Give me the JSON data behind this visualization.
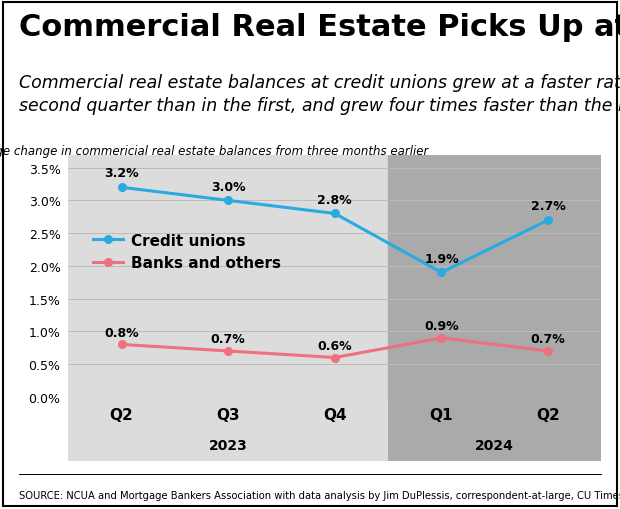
{
  "title": "Commercial Real Estate Picks Up at CUs",
  "subtitle": "Commercial real estate balances at credit unions grew at a faster rate in the\nsecond quarter than in the first, and grew four times faster than the nation.",
  "axis_label": "Percentage change in commericial real estate balances from three months earlier",
  "source": "SOURCE: NCUA and Mortgage Bankers Association with data analysis by Jim DuPlessis, correspondent-at-large, CU Times.",
  "x_labels": [
    "Q2",
    "Q3",
    "Q4",
    "Q1",
    "Q2"
  ],
  "x_positions": [
    0,
    1,
    2,
    3,
    4
  ],
  "year_2023_label": "2023",
  "year_2024_label": "2024",
  "cu_values": [
    3.2,
    3.0,
    2.8,
    1.9,
    2.7
  ],
  "bank_values": [
    0.8,
    0.7,
    0.6,
    0.9,
    0.7
  ],
  "cu_label": "Credit unions",
  "bank_label": "Banks and others",
  "cu_color": "#29ABE2",
  "bank_color": "#F07080",
  "ylim": [
    0.0,
    3.7
  ],
  "yticks": [
    0.0,
    0.5,
    1.0,
    1.5,
    2.0,
    2.5,
    3.0,
    3.5
  ],
  "bg_color": "#FFFFFF",
  "plot_bg": "#FFFFFF",
  "band_2023_color": "#DCDCDC",
  "band_2024_color": "#AAAAAA",
  "grid_color": "#BBBBBB",
  "title_fontsize": 22,
  "subtitle_fontsize": 12.5,
  "axis_label_fontsize": 8.5,
  "tick_fontsize": 9,
  "legend_fontsize": 11,
  "source_fontsize": 7.2
}
